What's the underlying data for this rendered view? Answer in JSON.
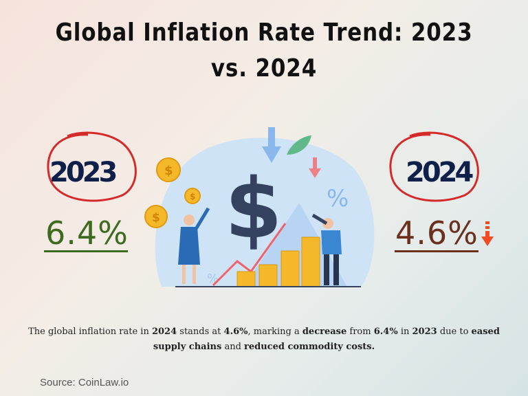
{
  "title": "Global Inflation Rate Trend: 2023 vs. 2024",
  "left": {
    "year": "2023",
    "value": "6.4%",
    "color": "#3d6a1f"
  },
  "right": {
    "year": "2024",
    "value": "4.6%",
    "color": "#6b2f1d",
    "trend_icon": "arrow-down-icon"
  },
  "description": {
    "p1": "The global inflation rate in ",
    "b1": "2024",
    "p2": " stands at ",
    "b2": "4.6%",
    "p3": ", marking a ",
    "b3": "decrease",
    "p4": " from ",
    "b4": "6.4%",
    "p5": " in ",
    "b5": "2023",
    "p6": " due to ",
    "b6": "eased supply chains",
    "p7": " and ",
    "b7": "reduced commodity costs."
  },
  "source": "Source: CoinLaw.io",
  "colors": {
    "circle": "#d42a2a",
    "year": "#0e1f4a",
    "accent_down": "#f04b23"
  }
}
